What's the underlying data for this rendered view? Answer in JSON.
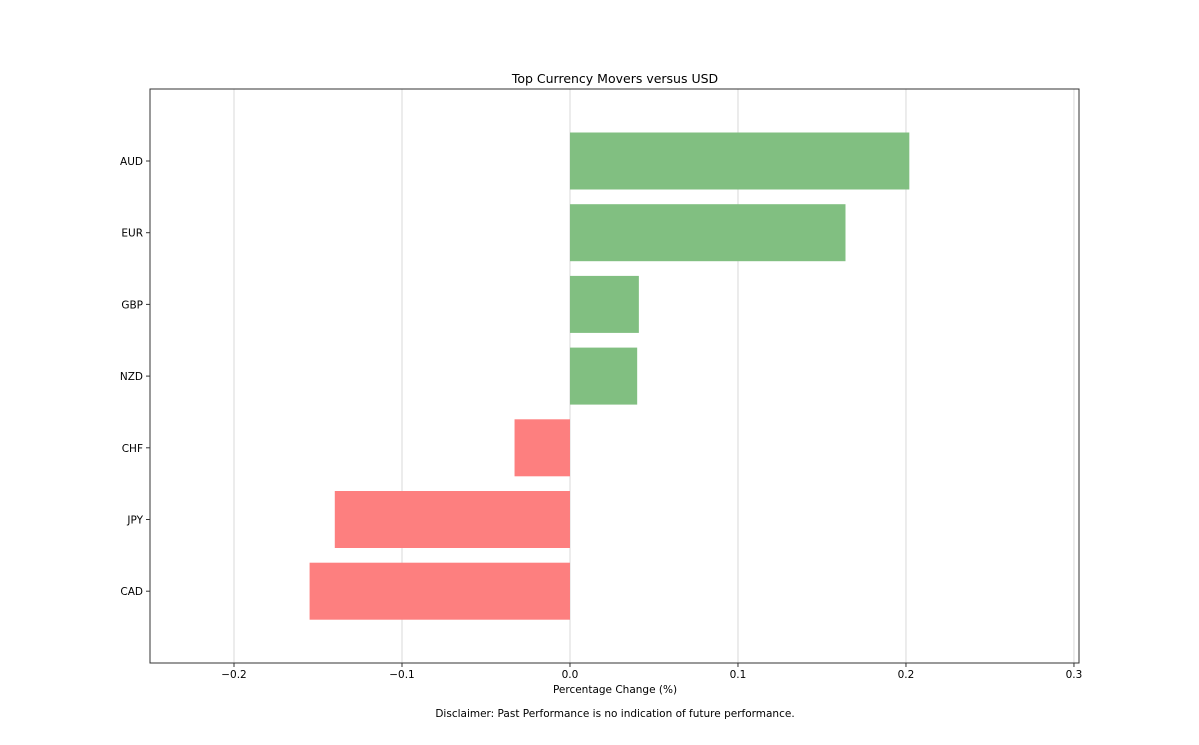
{
  "chart_data": {
    "type": "bar",
    "orientation": "horizontal",
    "title": "Top Currency Movers versus USD",
    "xlabel": "Percentage Change (%)",
    "ylabel": "",
    "categories": [
      "AUD",
      "EUR",
      "GBP",
      "NZD",
      "CHF",
      "JPY",
      "CAD"
    ],
    "values": [
      0.202,
      0.164,
      0.041,
      0.04,
      -0.033,
      -0.14,
      -0.155
    ],
    "xlim": [
      -0.25,
      0.303
    ],
    "xticks": [
      -0.2,
      -0.1,
      0.0,
      0.1,
      0.2,
      0.3
    ],
    "xtick_labels": [
      "−0.2",
      "−0.1",
      "0.0",
      "0.1",
      "0.2",
      "0.3"
    ],
    "grid": "vertical",
    "colors": {
      "positive": "#81bf81",
      "negative": "#fd7f7f",
      "grid": "#d9d9d9",
      "axes": "#333333"
    }
  },
  "footer": {
    "disclaimer": "Disclaimer: Past Performance is no indication of future performance."
  }
}
